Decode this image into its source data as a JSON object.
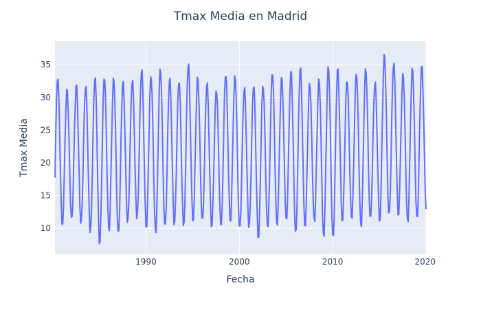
{
  "chart_data": {
    "type": "line",
    "title": "Tmax Media en Madrid",
    "xlabel": "Fecha",
    "ylabel": "Tmax Media",
    "xlim": [
      1980.25,
      2020.0
    ],
    "ylim": [
      6.0,
      38.6
    ],
    "xticks": [
      1990,
      2000,
      2010,
      2020
    ],
    "xtick_labels": [
      "1990",
      "2000",
      "2010",
      "2020"
    ],
    "yticks": [
      10,
      15,
      20,
      25,
      30,
      35
    ],
    "ytick_labels": [
      "10",
      "15",
      "20",
      "25",
      "30",
      "35"
    ],
    "grid": true,
    "series": [
      {
        "name": "Tmax Media",
        "color": "#636efa",
        "summer_peaks": [
          33.2,
          31.3,
          32.0,
          31.9,
          33.3,
          33.3,
          33.0,
          32.5,
          32.8,
          34.4,
          33.4,
          34.5,
          33.0,
          32.7,
          35.3,
          33.1,
          32.3,
          31.3,
          33.7,
          33.4,
          31.6,
          32.0,
          32.0,
          34.0,
          33.1,
          34.1,
          34.6,
          32.2,
          32.8,
          34.8,
          34.5,
          32.8,
          33.8,
          34.5,
          32.5,
          36.6,
          35.4,
          33.7,
          34.5,
          34.9
        ],
        "winter_lows": [
          9.0,
          10.4,
          11.3,
          10.6,
          9.3,
          7.5,
          9.5,
          8.9,
          10.8,
          11.4,
          10.1,
          9.2,
          9.9,
          10.5,
          10.1,
          11.1,
          10.9,
          10.2,
          10.0,
          11.0,
          9.6,
          10.1,
          8.4,
          9.8,
          10.3,
          11.1,
          9.1,
          10.3,
          10.9,
          8.6,
          8.3,
          10.9,
          11.3,
          10.1,
          11.1,
          11.1,
          11.7,
          12.0,
          10.8,
          11.3,
          12.7
        ]
      }
    ]
  }
}
